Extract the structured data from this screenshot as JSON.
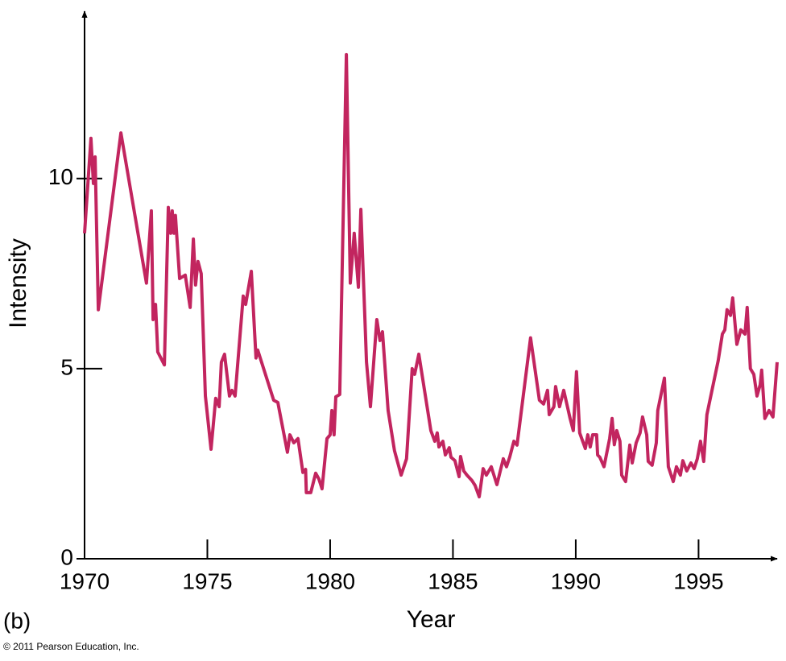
{
  "chart_data": {
    "type": "line",
    "x_label": "Year",
    "y_label": "Intensity",
    "panel_label": "(b)",
    "credit": "© 2011 Pearson Education, Inc.",
    "color": "#c2255f",
    "xlim": [
      1970,
      1998.2
    ],
    "ylim": [
      0,
      14.4
    ],
    "xticks": [
      1970,
      1975,
      1980,
      1985,
      1990,
      1995
    ],
    "yticks": [
      0,
      5,
      10
    ],
    "x": [
      1970.0,
      1970.26,
      1970.36,
      1970.43,
      1970.56,
      1971.48,
      1972.52,
      1972.72,
      1972.79,
      1972.89,
      1972.98,
      1973.25,
      1973.41,
      1973.51,
      1973.57,
      1973.64,
      1973.7,
      1973.87,
      1974.1,
      1974.3,
      1974.43,
      1974.52,
      1974.62,
      1974.75,
      1974.92,
      1975.15,
      1975.34,
      1975.48,
      1975.57,
      1975.7,
      1975.9,
      1976.0,
      1976.13,
      1976.46,
      1976.56,
      1976.79,
      1976.98,
      1977.05,
      1977.7,
      1977.87,
      1978.26,
      1978.36,
      1978.52,
      1978.69,
      1978.89,
      1979.0,
      1979.03,
      1979.21,
      1979.41,
      1979.54,
      1979.67,
      1979.87,
      1980.0,
      1980.07,
      1980.16,
      1980.23,
      1980.39,
      1980.66,
      1980.82,
      1980.98,
      1981.15,
      1981.25,
      1981.48,
      1981.64,
      1981.9,
      1982.03,
      1982.13,
      1982.36,
      1982.62,
      1982.89,
      1983.11,
      1983.34,
      1983.44,
      1983.61,
      1984.1,
      1984.26,
      1984.36,
      1984.43,
      1984.59,
      1984.69,
      1984.85,
      1984.92,
      1985.08,
      1985.25,
      1985.31,
      1985.44,
      1985.57,
      1985.77,
      1985.9,
      1986.07,
      1986.23,
      1986.36,
      1986.56,
      1986.79,
      1987.05,
      1987.18,
      1987.31,
      1987.48,
      1987.61,
      1988.16,
      1988.52,
      1988.69,
      1988.85,
      1988.92,
      1989.11,
      1989.18,
      1989.34,
      1989.51,
      1989.77,
      1989.9,
      1990.03,
      1990.16,
      1990.39,
      1990.49,
      1990.59,
      1990.69,
      1990.85,
      1990.89,
      1990.98,
      1991.15,
      1991.38,
      1991.48,
      1991.57,
      1991.67,
      1991.8,
      1991.87,
      1992.03,
      1992.2,
      1992.3,
      1992.46,
      1992.62,
      1992.72,
      1992.89,
      1992.95,
      1993.11,
      1993.28,
      1993.34,
      1993.61,
      1993.77,
      1993.97,
      1994.1,
      1994.26,
      1994.36,
      1994.52,
      1994.69,
      1994.82,
      1994.95,
      1995.08,
      1995.21,
      1995.34,
      1995.8,
      1995.97,
      1996.07,
      1996.16,
      1996.3,
      1996.39,
      1996.56,
      1996.72,
      1996.89,
      1996.98,
      1997.11,
      1997.25,
      1997.38,
      1997.51,
      1997.57,
      1997.7,
      1997.87,
      1998.03,
      1998.2
    ],
    "values": [
      8.56,
      11.06,
      9.87,
      10.57,
      6.55,
      11.2,
      7.25,
      9.15,
      6.29,
      6.69,
      5.44,
      5.1,
      9.24,
      8.56,
      9.15,
      8.56,
      9.03,
      7.37,
      7.46,
      6.61,
      8.41,
      7.2,
      7.82,
      7.5,
      4.28,
      2.88,
      4.22,
      4.0,
      5.17,
      5.38,
      4.28,
      4.43,
      4.28,
      6.91,
      6.69,
      7.56,
      5.28,
      5.49,
      4.17,
      4.11,
      2.8,
      3.26,
      3.05,
      3.16,
      2.27,
      2.35,
      1.74,
      1.74,
      2.25,
      2.1,
      1.84,
      3.16,
      3.26,
      3.9,
      3.26,
      4.26,
      4.32,
      13.26,
      7.25,
      8.56,
      7.14,
      9.19,
      5.17,
      4.0,
      6.29,
      5.74,
      5.97,
      3.9,
      2.84,
      2.2,
      2.63,
      5.0,
      4.85,
      5.38,
      3.37,
      3.09,
      3.31,
      2.94,
      3.09,
      2.73,
      2.92,
      2.67,
      2.58,
      2.16,
      2.69,
      2.31,
      2.2,
      2.06,
      1.93,
      1.63,
      2.37,
      2.2,
      2.42,
      1.95,
      2.63,
      2.42,
      2.67,
      3.09,
      2.99,
      5.81,
      4.17,
      4.07,
      4.43,
      3.79,
      4.0,
      4.53,
      4.0,
      4.43,
      3.69,
      3.37,
      4.92,
      3.31,
      2.9,
      3.26,
      2.94,
      3.26,
      3.26,
      2.73,
      2.67,
      2.42,
      3.16,
      3.69,
      3.0,
      3.37,
      3.09,
      2.2,
      2.03,
      2.99,
      2.52,
      3.05,
      3.31,
      3.73,
      3.26,
      2.56,
      2.46,
      3.05,
      3.9,
      4.75,
      2.42,
      2.03,
      2.42,
      2.2,
      2.58,
      2.31,
      2.52,
      2.37,
      2.63,
      3.09,
      2.56,
      3.79,
      5.21,
      5.91,
      6.02,
      6.55,
      6.4,
      6.86,
      5.64,
      6.02,
      5.91,
      6.61,
      5.0,
      4.85,
      4.28,
      4.58,
      4.96,
      3.69,
      3.9,
      3.73,
      5.17
    ]
  }
}
